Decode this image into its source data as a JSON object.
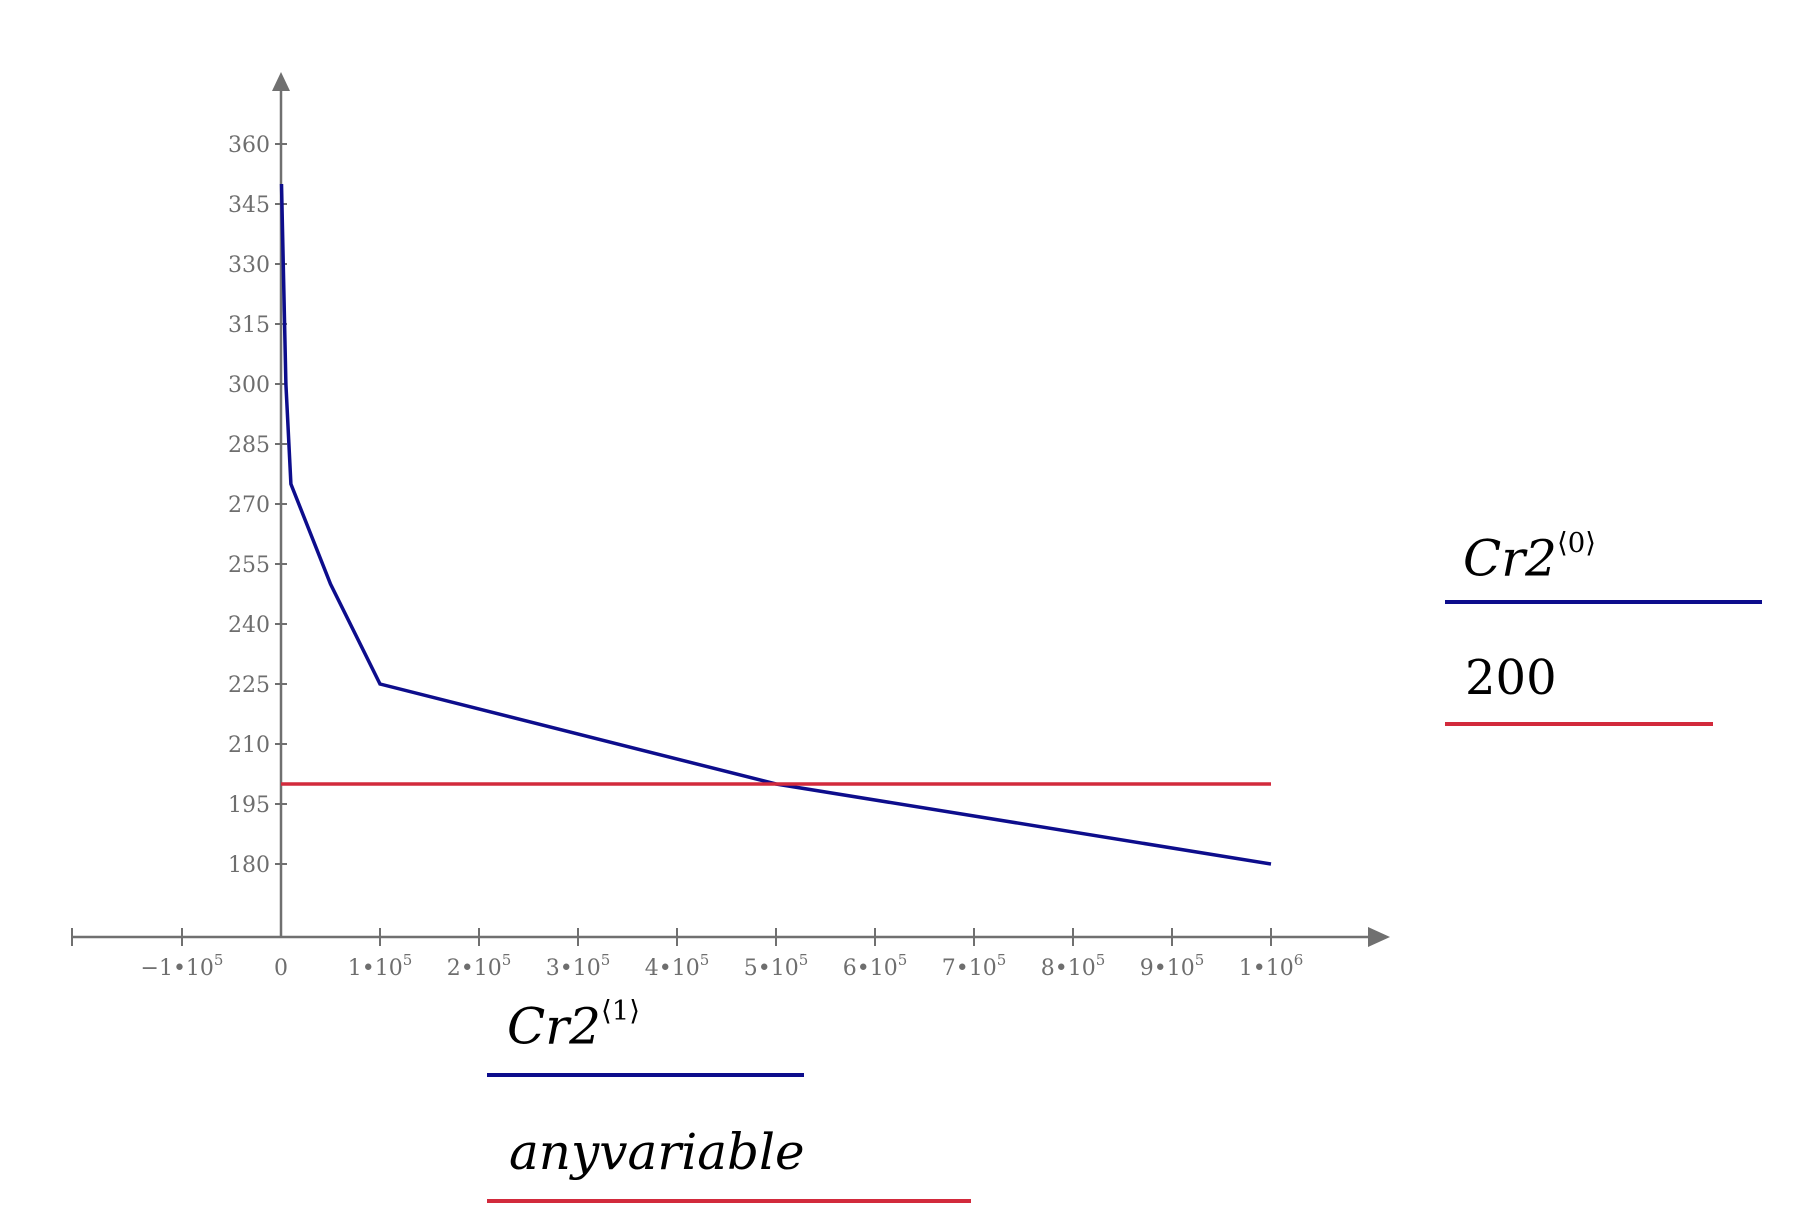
{
  "chart_data": {
    "type": "line",
    "title": "",
    "xlabel": "Cr2⟨1⟩",
    "ylabel": "Cr2⟨0⟩",
    "xlim": [
      -210000,
      1100000
    ],
    "ylim": [
      161,
      377
    ],
    "grid": false,
    "x_ticks": [
      -100000,
      0,
      100000,
      200000,
      300000,
      400000,
      500000,
      600000,
      700000,
      800000,
      900000,
      1000000
    ],
    "x_tick_labels": [
      "−1•10^5",
      "0",
      "1•10^5",
      "2•10^5",
      "3•10^5",
      "4•10^5",
      "5•10^5",
      "6•10^5",
      "7•10^5",
      "8•10^5",
      "9•10^5",
      "1•10^6"
    ],
    "y_ticks": [
      180,
      195,
      210,
      225,
      240,
      255,
      270,
      285,
      300,
      315,
      330,
      345,
      360
    ],
    "y_tick_labels": [
      "180",
      "195",
      "210",
      "225",
      "240",
      "255",
      "270",
      "285",
      "300",
      "315",
      "330",
      "345",
      "360"
    ],
    "series": [
      {
        "name": "Cr2⟨0⟩ vs Cr2⟨1⟩",
        "color": "#0d0d8c",
        "x": [
          500,
          5000,
          10000,
          50000,
          100000,
          500000,
          1000000
        ],
        "y": [
          350,
          300,
          275,
          250,
          225,
          200,
          180
        ]
      },
      {
        "name": "200 vs anyvariable",
        "color": "#d22a3c",
        "x": [
          0,
          1000000
        ],
        "y": [
          200,
          200
        ]
      }
    ],
    "legend": {
      "y_axis": [
        {
          "label": "Cr2",
          "superscript": "⟨0⟩",
          "color": "#0d0d8c"
        },
        {
          "label": "200",
          "superscript": "",
          "color": "#d22a3c"
        }
      ],
      "x_axis": [
        {
          "label": "Cr2",
          "superscript": "⟨1⟩",
          "color": "#0d0d8c"
        },
        {
          "label": "anyvariable",
          "superscript": "",
          "color": "#d22a3c"
        }
      ]
    }
  },
  "colors": {
    "axis": "#707070",
    "series_blue": "#0d0d8c",
    "series_red": "#d22a3c"
  }
}
